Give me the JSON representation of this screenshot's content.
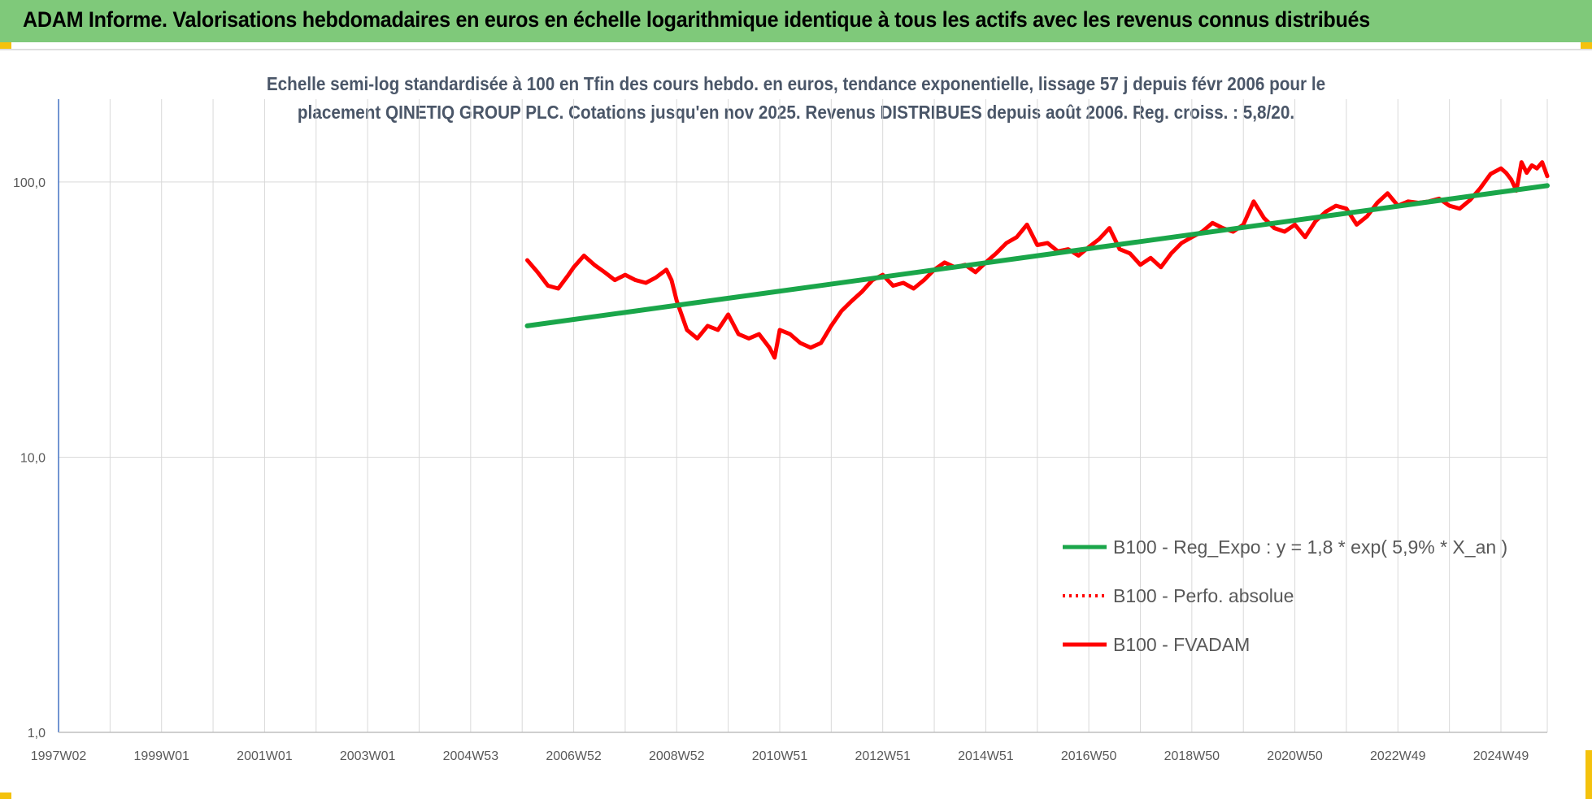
{
  "banner": {
    "title": "ADAM Informe. Valorisations hebdomadaires en euros en échelle logarithmique identique à tous les actifs avec les revenus connus distribués",
    "background": "#7fc97a"
  },
  "chart_data": {
    "type": "line",
    "title_lines": [
      "Echelle semi-log standardisée à 100 en Tfin des cours hebdo. en euros, tendance exponentielle, lissage 57 j depuis févr 2006 pour le",
      "placement QINETIQ GROUP PLC. Cotations jusqu'en nov 2025. Revenus DISTRIBUES depuis août 2006. Reg. croiss. : 5,8/20."
    ],
    "y_scale": "log",
    "ylim": [
      1,
      200
    ],
    "y_ticks": [
      {
        "value": 1,
        "label": "1,0"
      },
      {
        "value": 10,
        "label": "10,0"
      },
      {
        "value": 100,
        "label": "100,0"
      }
    ],
    "xlim": [
      1997.0,
      2025.9
    ],
    "x_ticks": [
      {
        "value": 1997.0,
        "label": "1997W02"
      },
      {
        "value": 1999.0,
        "label": "1999W01"
      },
      {
        "value": 2001.0,
        "label": "2001W01"
      },
      {
        "value": 2003.0,
        "label": "2003W01"
      },
      {
        "value": 2005.0,
        "label": "2004W53"
      },
      {
        "value": 2007.0,
        "label": "2006W52"
      },
      {
        "value": 2009.0,
        "label": "2008W52"
      },
      {
        "value": 2011.0,
        "label": "2010W51"
      },
      {
        "value": 2013.0,
        "label": "2012W51"
      },
      {
        "value": 2015.0,
        "label": "2014W51"
      },
      {
        "value": 2017.0,
        "label": "2016W50"
      },
      {
        "value": 2019.0,
        "label": "2018W50"
      },
      {
        "value": 2021.0,
        "label": "2020W50"
      },
      {
        "value": 2023.0,
        "label": "2022W49"
      },
      {
        "value": 2025.0,
        "label": "2024W49"
      }
    ],
    "grid": "vertical",
    "legend_position": "bottom-right",
    "series": [
      {
        "name": "B100 - Reg_Expo : y = 1,8 * exp( 5,9% *  X_an )",
        "color": "#1aa64a",
        "style": "solid",
        "x": [
          2006.1,
          2025.9
        ],
        "y": [
          30.0,
          97.0
        ]
      },
      {
        "name": "B100 - Perfo. absolue",
        "color": "#ff0000",
        "style": "dotted",
        "x": [],
        "y": []
      },
      {
        "name": "B100 - FVADAM",
        "color": "#ff0000",
        "style": "solid",
        "x": [
          2006.1,
          2006.3,
          2006.5,
          2006.7,
          2006.9,
          2007.0,
          2007.2,
          2007.4,
          2007.6,
          2007.8,
          2008.0,
          2008.2,
          2008.4,
          2008.6,
          2008.8,
          2008.9,
          2009.0,
          2009.2,
          2009.4,
          2009.6,
          2009.8,
          2010.0,
          2010.2,
          2010.4,
          2010.6,
          2010.8,
          2010.9,
          2011.0,
          2011.2,
          2011.4,
          2011.6,
          2011.8,
          2012.0,
          2012.2,
          2012.4,
          2012.6,
          2012.8,
          2013.0,
          2013.2,
          2013.4,
          2013.6,
          2013.8,
          2014.0,
          2014.2,
          2014.4,
          2014.6,
          2014.8,
          2015.0,
          2015.2,
          2015.4,
          2015.6,
          2015.8,
          2016.0,
          2016.2,
          2016.4,
          2016.6,
          2016.8,
          2017.0,
          2017.2,
          2017.4,
          2017.6,
          2017.8,
          2018.0,
          2018.2,
          2018.4,
          2018.6,
          2018.8,
          2019.0,
          2019.2,
          2019.4,
          2019.6,
          2019.8,
          2020.0,
          2020.2,
          2020.4,
          2020.6,
          2020.8,
          2021.0,
          2021.2,
          2021.4,
          2021.6,
          2021.8,
          2022.0,
          2022.2,
          2022.4,
          2022.6,
          2022.8,
          2023.0,
          2023.2,
          2023.4,
          2023.6,
          2023.8,
          2024.0,
          2024.2,
          2024.4,
          2024.6,
          2024.8,
          2025.0,
          2025.1,
          2025.2,
          2025.3,
          2025.4,
          2025.5,
          2025.6,
          2025.7,
          2025.8,
          2025.9
        ],
        "y": [
          52,
          47,
          42,
          41,
          46,
          49,
          54,
          50,
          47,
          44,
          46,
          44,
          43,
          45,
          48,
          44,
          37,
          29,
          27,
          30,
          29,
          33,
          28,
          27,
          28,
          25,
          23,
          29,
          28,
          26,
          25,
          26,
          30,
          34,
          37,
          40,
          44,
          46,
          42,
          43,
          41,
          44,
          48,
          51,
          49,
          50,
          47,
          51,
          55,
          60,
          63,
          70,
          59,
          60,
          56,
          57,
          54,
          58,
          62,
          68,
          57,
          55,
          50,
          53,
          49,
          55,
          60,
          63,
          66,
          71,
          68,
          66,
          70,
          85,
          74,
          68,
          66,
          70,
          63,
          72,
          78,
          82,
          80,
          70,
          75,
          84,
          91,
          82,
          85,
          84,
          85,
          87,
          82,
          80,
          86,
          95,
          107,
          112,
          108,
          102,
          93,
          118,
          108,
          115,
          112,
          118,
          105
        ]
      }
    ]
  }
}
